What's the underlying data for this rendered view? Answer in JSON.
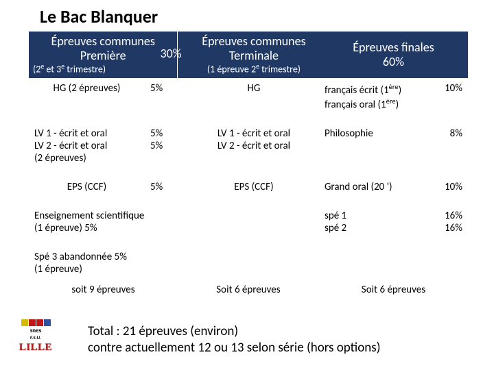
{
  "title": "Le Bac Blanquer",
  "header": {
    "col1_main": "Épreuves communes Première",
    "col1_sub_html": "(2<sup>e</sup> et 3<sup>e</sup> trimestre)",
    "mid_pct": "30%",
    "col2_main": "Épreuves communes Terminale",
    "col2_sub_html": "(1 épreuve 2<sup>e</sup> trimestre)",
    "col3_main": "Épreuves finales",
    "col3_pct": "60%"
  },
  "rows": [
    {
      "c1": "HG (2 épreuves)",
      "p1": "5%",
      "c2": "HG",
      "c3_html": "français écrit (1<sup>ère</sup>)<br>français oral  (1<sup>ère</sup>)",
      "p3": "10%"
    },
    {
      "c1": "LV 1 - écrit et oral\nLV 2 - écrit et oral\n(2 épreuves)",
      "p1": "5%\n5%",
      "c2": "LV 1 - écrit et oral\nLV 2 - écrit et oral",
      "c3_html": "Philosophie",
      "p3": "8%"
    },
    {
      "c1": "EPS (CCF)",
      "p1": "5%",
      "c2": "EPS (CCF)",
      "c3_html": "Grand oral (20 ')",
      "p3": "10%"
    },
    {
      "c1": "Enseignement scientifique\n(1 épreuve)                      5%",
      "p1": "",
      "c2": "",
      "c3_html": "spé 1<br>spé 2",
      "p3": "16%\n16%"
    },
    {
      "c1": "Spé 3 abandonnée            5%\n(1 épreuve)",
      "p1": "",
      "c2": "",
      "c3_html": "",
      "p3": ""
    }
  ],
  "footer": {
    "f1": "soit 9 épreuves",
    "f2": "Soit 6 épreuves",
    "f3": "Soit 6 épreuves"
  },
  "total": "Total : 21 épreuves (environ)\ncontre actuellement 12 ou 13 selon série (hors options)",
  "logo": {
    "colors": [
      "#d4bc00",
      "#c01818",
      "#c01818",
      "#3050a0"
    ],
    "text1": "snes",
    "text2": "F.S.U.",
    "lille": "LILLE"
  },
  "colors": {
    "header_bg": "#203864",
    "header_fg": "#ffffff"
  }
}
